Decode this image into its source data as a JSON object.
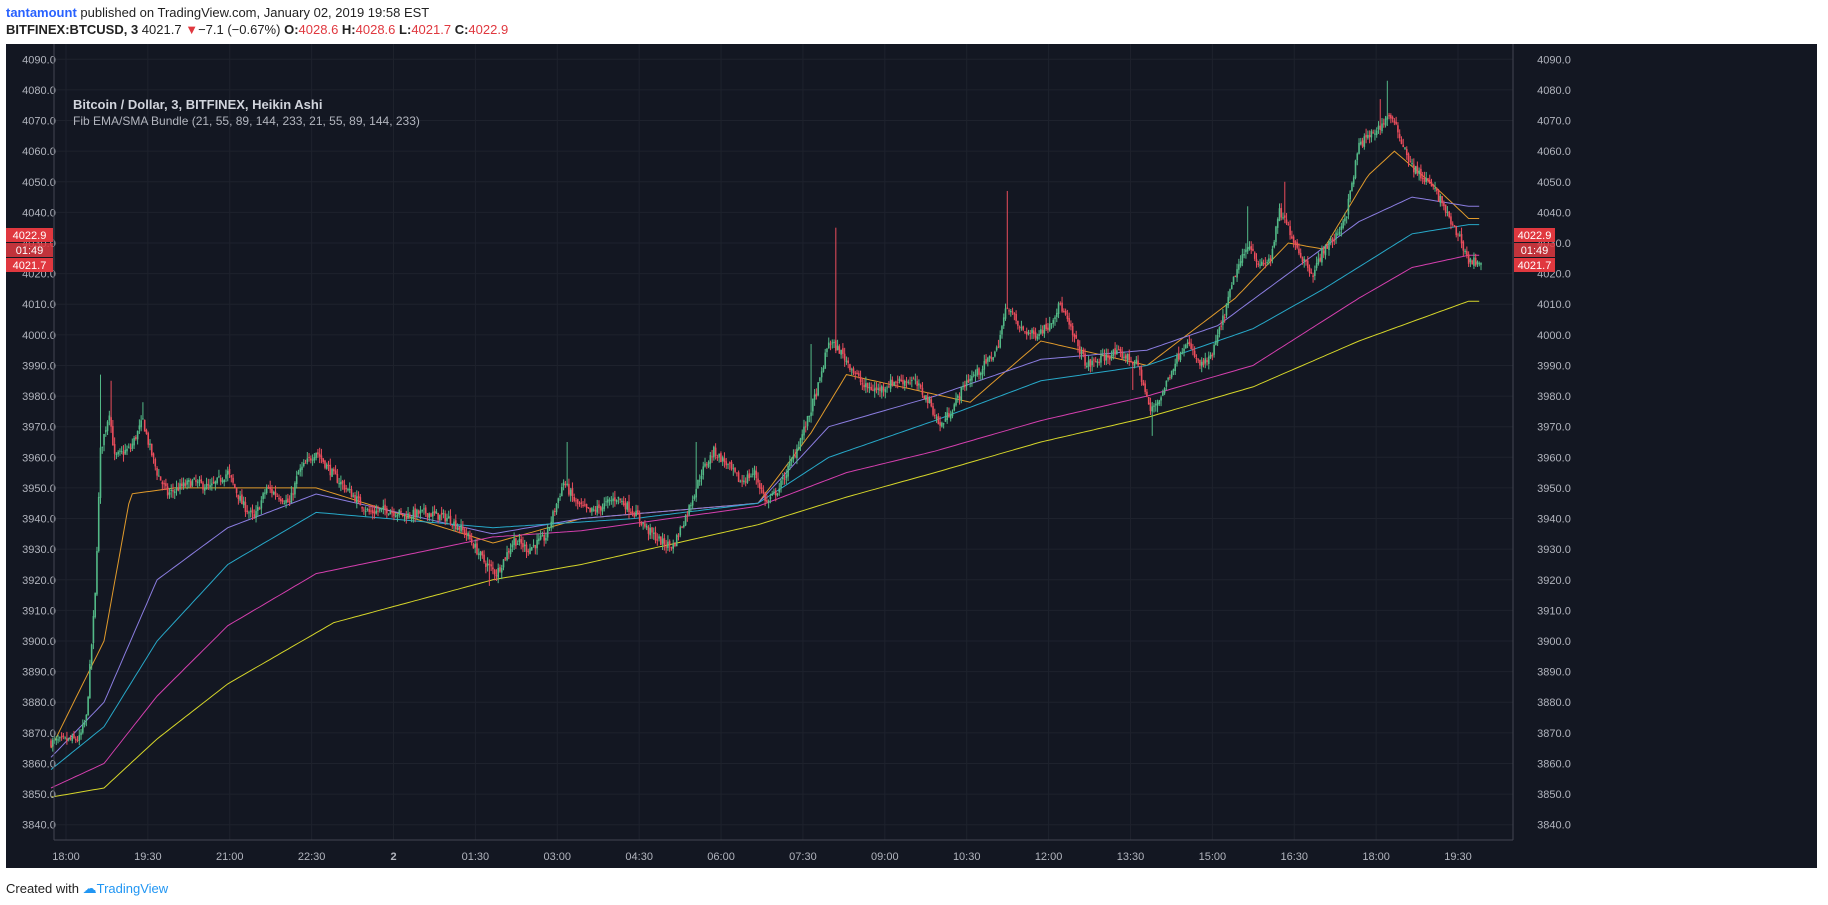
{
  "header": {
    "user": "tantamount",
    "published_text": "published on TradingView.com, January 02, 2019 19:58 EST",
    "symbol": "BITFINEX:BTCUSD, 3",
    "last": "4021.7",
    "change": "−7.1 (−0.67%)",
    "o_label": "O:",
    "o": "4028.6",
    "h_label": "H:",
    "h": "4028.6",
    "l_label": "L:",
    "l": "4021.7",
    "c_label": "C:",
    "c": "4022.9"
  },
  "legend": {
    "title": "Bitcoin / Dollar, 3, BITFINEX, Heikin Ashi",
    "indicator": "Fib EMA/SMA Bundle (21, 55, 89, 144, 233, 21, 55, 89, 144, 233)"
  },
  "price_tags": {
    "close": "4022.9",
    "countdown": "01:49",
    "low": "4021.7"
  },
  "footer": {
    "created_with": "Created with",
    "brand": "TradingView"
  },
  "colors": {
    "background": "#131722",
    "up": "#53b987",
    "down": "#eb4d5c",
    "ema21": "#e09a2b",
    "ema55": "#8b7de0",
    "ema89": "#27a8c8",
    "ema144": "#d43fae",
    "ema233": "#d6d62a"
  },
  "chart_data": {
    "type": "candlestick",
    "y_axis": {
      "min": 3835,
      "max": 4095,
      "ticks": [
        3840,
        3850,
        3860,
        3870,
        3880,
        3890,
        3900,
        3910,
        3920,
        3930,
        3940,
        3950,
        3960,
        3970,
        3980,
        3990,
        4000,
        4010,
        4020,
        4030,
        4040,
        4050,
        4060,
        4070,
        4080,
        4090
      ]
    },
    "x_axis": {
      "labels": [
        "18:00",
        "19:30",
        "21:00",
        "22:30",
        "2",
        "01:30",
        "03:00",
        "04:30",
        "06:00",
        "07:30",
        "09:00",
        "10:30",
        "12:00",
        "13:30",
        "15:00",
        "16:30",
        "18:00",
        "19:30"
      ],
      "bold_labels": [
        "2"
      ]
    },
    "price_path": [
      [
        0,
        3867
      ],
      [
        16,
        3868
      ],
      [
        20,
        3875
      ],
      [
        25,
        3915
      ],
      [
        28,
        3962
      ],
      [
        33,
        3975
      ],
      [
        36,
        3960
      ],
      [
        45,
        3963
      ],
      [
        52,
        3972
      ],
      [
        55,
        3965
      ],
      [
        60,
        3955
      ],
      [
        66,
        3948
      ],
      [
        72,
        3950
      ],
      [
        80,
        3952
      ],
      [
        90,
        3950
      ],
      [
        100,
        3955
      ],
      [
        108,
        3945
      ],
      [
        115,
        3940
      ],
      [
        122,
        3950
      ],
      [
        135,
        3945
      ],
      [
        140,
        3955
      ],
      [
        150,
        3962
      ],
      [
        160,
        3954
      ],
      [
        170,
        3948
      ],
      [
        180,
        3942
      ],
      [
        190,
        3943
      ],
      [
        200,
        3941
      ],
      [
        212,
        3942
      ],
      [
        225,
        3940
      ],
      [
        235,
        3935
      ],
      [
        245,
        3926
      ],
      [
        252,
        3922
      ],
      [
        262,
        3933
      ],
      [
        270,
        3930
      ],
      [
        280,
        3934
      ],
      [
        290,
        3952
      ],
      [
        297,
        3945
      ],
      [
        305,
        3942
      ],
      [
        312,
        3944
      ],
      [
        320,
        3947
      ],
      [
        330,
        3942
      ],
      [
        338,
        3936
      ],
      [
        346,
        3932
      ],
      [
        352,
        3931
      ],
      [
        360,
        3942
      ],
      [
        368,
        3955
      ],
      [
        375,
        3962
      ],
      [
        382,
        3958
      ],
      [
        390,
        3952
      ],
      [
        398,
        3955
      ],
      [
        405,
        3945
      ],
      [
        412,
        3950
      ],
      [
        420,
        3960
      ],
      [
        428,
        3972
      ],
      [
        435,
        3985
      ],
      [
        440,
        3998
      ],
      [
        446,
        3995
      ],
      [
        452,
        3990
      ],
      [
        460,
        3983
      ],
      [
        468,
        3982
      ],
      [
        478,
        3985
      ],
      [
        488,
        3985
      ],
      [
        497,
        3978
      ],
      [
        503,
        3970
      ],
      [
        510,
        3976
      ],
      [
        518,
        3985
      ],
      [
        525,
        3988
      ],
      [
        535,
        3995
      ],
      [
        541,
        4010
      ],
      [
        548,
        4002
      ],
      [
        556,
        4000
      ],
      [
        564,
        4003
      ],
      [
        571,
        4010
      ],
      [
        578,
        4000
      ],
      [
        586,
        3990
      ],
      [
        594,
        3992
      ],
      [
        601,
        3994
      ],
      [
        608,
        3993
      ],
      [
        615,
        3990
      ],
      [
        622,
        3975
      ],
      [
        628,
        3980
      ],
      [
        635,
        3990
      ],
      [
        642,
        3998
      ],
      [
        650,
        3990
      ],
      [
        656,
        3992
      ],
      [
        663,
        4005
      ],
      [
        670,
        4020
      ],
      [
        678,
        4030
      ],
      [
        684,
        4022
      ],
      [
        690,
        4025
      ],
      [
        695,
        4040
      ],
      [
        700,
        4035
      ],
      [
        708,
        4025
      ],
      [
        714,
        4020
      ],
      [
        720,
        4028
      ],
      [
        727,
        4032
      ],
      [
        733,
        4040
      ],
      [
        740,
        4062
      ],
      [
        746,
        4065
      ],
      [
        752,
        4068
      ],
      [
        757,
        4072
      ],
      [
        763,
        4065
      ],
      [
        770,
        4055
      ],
      [
        775,
        4052
      ],
      [
        782,
        4048
      ],
      [
        788,
        4042
      ],
      [
        793,
        4035
      ],
      [
        797,
        4032
      ],
      [
        802,
        4024
      ]
    ],
    "spikes": [
      [
        28,
        3987
      ],
      [
        34,
        3985
      ],
      [
        52,
        3978
      ],
      [
        248,
        3918
      ],
      [
        292,
        3965
      ],
      [
        365,
        3965
      ],
      [
        430,
        3997
      ],
      [
        444,
        4035
      ],
      [
        541,
        4047
      ],
      [
        612,
        3982
      ],
      [
        623,
        3967
      ],
      [
        677,
        4042
      ],
      [
        698,
        4050
      ],
      [
        756,
        4083
      ],
      [
        752,
        4077
      ]
    ],
    "ema_series": [
      {
        "name": "EMA 21",
        "values": [
          [
            0,
            3865
          ],
          [
            30,
            3900
          ],
          [
            45,
            3948
          ],
          [
            70,
            3950
          ],
          [
            150,
            3950
          ],
          [
            250,
            3932
          ],
          [
            300,
            3940
          ],
          [
            400,
            3945
          ],
          [
            430,
            3968
          ],
          [
            450,
            3987
          ],
          [
            520,
            3978
          ],
          [
            560,
            3998
          ],
          [
            620,
            3990
          ],
          [
            670,
            4012
          ],
          [
            700,
            4030
          ],
          [
            720,
            4028
          ],
          [
            745,
            4052
          ],
          [
            760,
            4060
          ],
          [
            780,
            4050
          ],
          [
            802,
            4038
          ]
        ]
      },
      {
        "name": "EMA 55",
        "values": [
          [
            0,
            3862
          ],
          [
            30,
            3880
          ],
          [
            60,
            3920
          ],
          [
            100,
            3937
          ],
          [
            150,
            3948
          ],
          [
            250,
            3935
          ],
          [
            300,
            3940
          ],
          [
            400,
            3945
          ],
          [
            440,
            3970
          ],
          [
            500,
            3980
          ],
          [
            560,
            3992
          ],
          [
            620,
            3995
          ],
          [
            660,
            4003
          ],
          [
            700,
            4020
          ],
          [
            740,
            4037
          ],
          [
            770,
            4045
          ],
          [
            802,
            4042
          ]
        ]
      },
      {
        "name": "EMA 89",
        "values": [
          [
            0,
            3858
          ],
          [
            30,
            3872
          ],
          [
            60,
            3900
          ],
          [
            100,
            3925
          ],
          [
            150,
            3942
          ],
          [
            250,
            3937
          ],
          [
            330,
            3940
          ],
          [
            400,
            3945
          ],
          [
            440,
            3960
          ],
          [
            500,
            3972
          ],
          [
            560,
            3985
          ],
          [
            620,
            3990
          ],
          [
            680,
            4002
          ],
          [
            720,
            4015
          ],
          [
            770,
            4033
          ],
          [
            802,
            4036
          ]
        ]
      },
      {
        "name": "EMA 144",
        "values": [
          [
            0,
            3852
          ],
          [
            30,
            3860
          ],
          [
            60,
            3882
          ],
          [
            100,
            3905
          ],
          [
            150,
            3922
          ],
          [
            250,
            3934
          ],
          [
            300,
            3936
          ],
          [
            400,
            3944
          ],
          [
            450,
            3955
          ],
          [
            500,
            3962
          ],
          [
            560,
            3972
          ],
          [
            620,
            3980
          ],
          [
            680,
            3990
          ],
          [
            740,
            4012
          ],
          [
            770,
            4022
          ],
          [
            802,
            4026
          ]
        ]
      },
      {
        "name": "EMA 233",
        "values": [
          [
            0,
            3849
          ],
          [
            30,
            3852
          ],
          [
            60,
            3868
          ],
          [
            100,
            3886
          ],
          [
            160,
            3906
          ],
          [
            250,
            3920
          ],
          [
            300,
            3925
          ],
          [
            400,
            3938
          ],
          [
            450,
            3947
          ],
          [
            500,
            3955
          ],
          [
            560,
            3965
          ],
          [
            620,
            3973
          ],
          [
            680,
            3983
          ],
          [
            740,
            3998
          ],
          [
            802,
            4011
          ]
        ]
      }
    ]
  }
}
